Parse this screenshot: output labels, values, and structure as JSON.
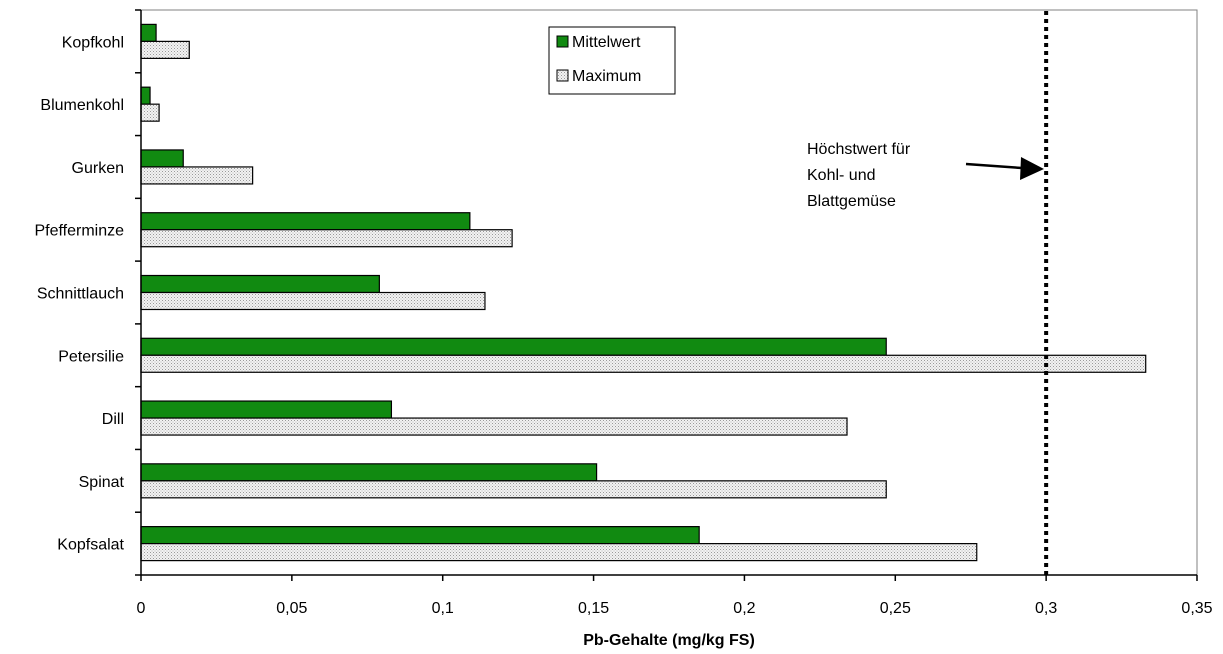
{
  "chart_data": {
    "type": "bar",
    "orientation": "horizontal",
    "categories": [
      "Kopfkohl",
      "Blumenkohl",
      "Gurken",
      "Pfefferminze",
      "Schnittlauch",
      "Petersilie",
      "Dill",
      "Spinat",
      "Kopfsalat"
    ],
    "series": [
      {
        "name": "Mittelwert",
        "values": [
          0.005,
          0.003,
          0.014,
          0.109,
          0.079,
          0.247,
          0.083,
          0.151,
          0.185
        ],
        "color": "#118a11"
      },
      {
        "name": "Maximum",
        "values": [
          0.016,
          0.006,
          0.037,
          0.123,
          0.114,
          0.333,
          0.234,
          0.247,
          0.277
        ],
        "color": "#e6e6e6"
      }
    ],
    "xlabel": "Pb-Gehalte (mg/kg FS)",
    "xlim": [
      0,
      0.35
    ],
    "xticks": [
      "0",
      "0,05",
      "0,1",
      "0,15",
      "0,2",
      "0,25",
      "0,3",
      "0,35"
    ],
    "grid": false,
    "legend": "top-center",
    "reference_line": {
      "value": 0.3,
      "style": "dotted",
      "label_lines": [
        "Höchstwert für",
        "Kohl- und",
        "Blattgemüse"
      ]
    }
  }
}
